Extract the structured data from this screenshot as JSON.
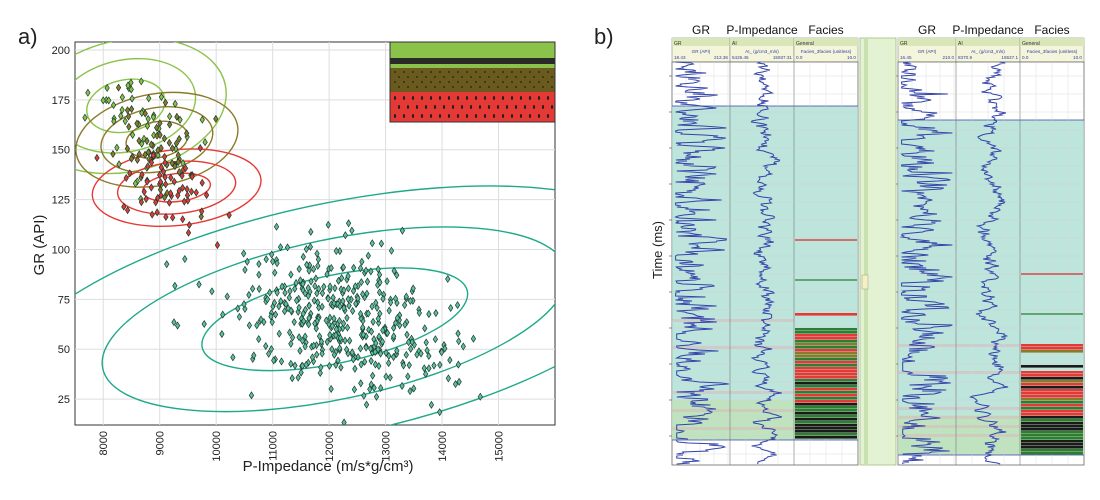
{
  "panel_a_label": "a)",
  "panel_b_label": "b)",
  "colors": {
    "shale": "#8bc34a",
    "silty": "#8b7a2a",
    "sand": "#e53935",
    "background_class": "#1fa88a",
    "log_line": "#3344aa",
    "fill_teal": "#a8dcd0",
    "fill_green": "#bfe3b0"
  },
  "chart_data": [
    {
      "type": "scatter",
      "title": "",
      "xlabel": "P-Impedance (m/s*g/cm³)",
      "ylabel": "GR (API)",
      "xlim": [
        7500,
        16000
      ],
      "ylim": [
        12,
        204
      ],
      "x_ticks": [
        8000,
        9000,
        10000,
        11000,
        12000,
        13000,
        14000,
        15000
      ],
      "x_tick_labels": [
        "8000",
        "9000",
        "10000",
        "11000",
        "12000",
        "13000",
        "14000",
        "15000"
      ],
      "y_ticks": [
        25,
        50,
        75,
        100,
        125,
        150,
        175,
        200
      ],
      "y_tick_labels": [
        "25",
        "50",
        "75",
        "100",
        "125",
        "150",
        "175",
        "200"
      ],
      "grid": true,
      "legend": "top-right (facies colour swatches, no text)",
      "clusters": [
        {
          "color": "#8bc34a",
          "cx": 8600,
          "cy": 158,
          "sx": 900,
          "sy": 16,
          "n": 55
        },
        {
          "color": "#8b7a2a",
          "cx": 8950,
          "cy": 150,
          "sx": 700,
          "sy": 12,
          "n": 50
        },
        {
          "color": "#e53935",
          "cx": 9200,
          "cy": 128,
          "sx": 700,
          "sy": 10,
          "n": 60
        },
        {
          "color": "#1fa88a",
          "cx": 12200,
          "cy": 65,
          "sx": 1700,
          "sy": 20,
          "n": 430
        }
      ],
      "ellipses": [
        {
          "color": "#8bc34a",
          "cx": 8400,
          "cy": 172,
          "rx": [
            700,
            1250,
            1800
          ],
          "ry": [
            13,
            23,
            33
          ],
          "angle": -12
        },
        {
          "color": "#8b7a2a",
          "cx": 8950,
          "cy": 155,
          "rx": [
            550,
            1000,
            1450
          ],
          "ry": [
            9,
            16,
            23
          ],
          "angle": -10
        },
        {
          "color": "#e53935",
          "cx": 9300,
          "cy": 131,
          "rx": [
            600,
            1050,
            1500
          ],
          "ry": [
            7,
            13,
            19
          ],
          "angle": -6
        },
        {
          "color": "#1fa88a",
          "cx": 12100,
          "cy": 65,
          "rx": [
            2400,
            4200,
            6000
          ],
          "ry": [
            22,
            40,
            58
          ],
          "angle": -12
        }
      ]
    },
    {
      "type": "line",
      "title": "",
      "ylabel": "Time (ms)",
      "wells": [
        {
          "tracks": [
            {
              "title": "GR",
              "header_name": "GR",
              "header_curve": "GR (API)",
              "min": "18.43",
              "max": "213.36"
            },
            {
              "title": "P-Impedance",
              "header_name": "AI",
              "header_curve": "AI_ (g/cm3_m/s)",
              "min": "5426.45",
              "max": "15937.31"
            },
            {
              "title": "Facies",
              "header_name": "General",
              "header_curve": "Facies_3facies (unitless)",
              "min": "0.0",
              "max": "10.0"
            }
          ]
        },
        {
          "tracks": [
            {
              "title": "GR",
              "header_name": "GR",
              "header_curve": "GR (API)",
              "min": "16.45",
              "max": "210.0"
            },
            {
              "title": "P-Impedance",
              "header_name": "AI",
              "header_curve": "AI_ (g/cm3_m/s)",
              "min": "8370.9",
              "max": "16537.1"
            },
            {
              "title": "Facies",
              "header_name": "General",
              "header_curve": "Facies_3facies (unitless)",
              "min": "0.0",
              "max": "10.0"
            }
          ]
        }
      ]
    }
  ]
}
